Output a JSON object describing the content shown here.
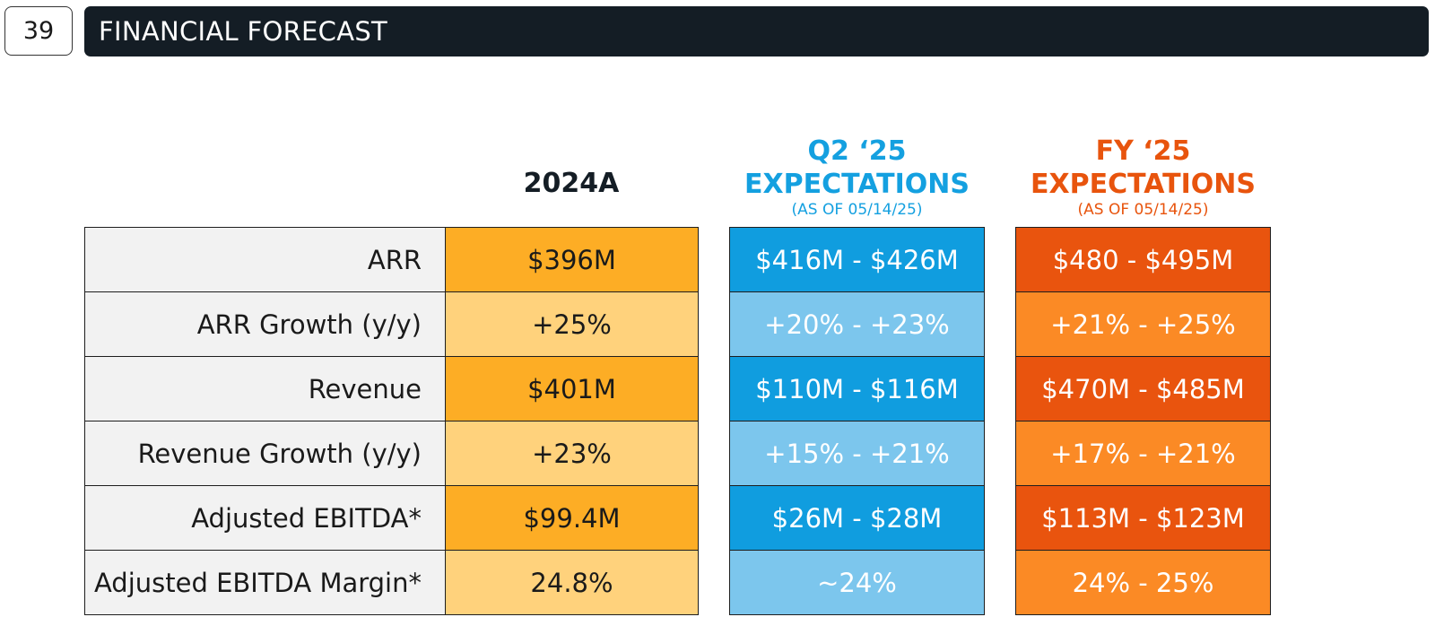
{
  "page_number": "39",
  "title": "FINANCIAL FORECAST",
  "columns": {
    "actual": {
      "heading": "2024A"
    },
    "q2": {
      "line1": "Q2 ‘25",
      "line2": "EXPECTATIONS",
      "note": "(AS OF 05/14/25)"
    },
    "fy": {
      "line1": "FY ‘25",
      "line2": "EXPECTATIONS",
      "note": "(AS OF 05/14/25)"
    }
  },
  "rows": [
    {
      "metric": "ARR",
      "actual": "$396M",
      "q2": "$416M - $426M",
      "fy": "$480 - $495M"
    },
    {
      "metric": "ARR Growth (y/y)",
      "actual": "+25%",
      "q2": "+20% - +23%",
      "fy": "+21% - +25%"
    },
    {
      "metric": "Revenue",
      "actual": "$401M",
      "q2": "$110M - $116M",
      "fy": "$470M - $485M"
    },
    {
      "metric": "Revenue Growth (y/y)",
      "actual": "+23%",
      "q2": "+15% - +21%",
      "fy": "+17% - +21%"
    },
    {
      "metric": "Adjusted EBITDA*",
      "actual": "$99.4M",
      "q2": "$26M - $28M",
      "fy": "$113M - $123M"
    },
    {
      "metric": "Adjusted EBITDA Margin*",
      "actual": "24.8%",
      "q2": "~24%",
      "fy": "24% - 25%"
    }
  ],
  "colors": {
    "title_bar": "#141d25",
    "actual_dark": "#fdad25",
    "actual_light": "#ffd27c",
    "q2_accent": "#14a0e0",
    "q2_dark": "#109ddf",
    "q2_light": "#7cc6ed",
    "fy_accent": "#e8540d",
    "fy_dark": "#e9540e",
    "fy_light": "#fb8a25"
  }
}
